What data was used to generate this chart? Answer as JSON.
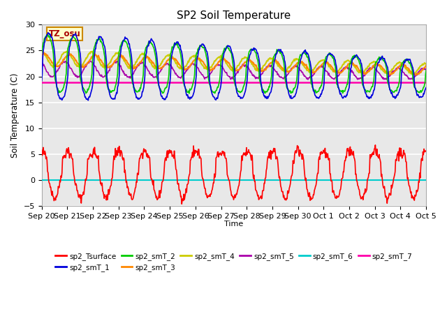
{
  "title": "SP2 Soil Temperature",
  "ylabel": "Soil Temperature (C)",
  "xlabel": "Time",
  "tz_label": "TZ_osu",
  "x_tick_labels": [
    "Sep 20",
    "Sep 21",
    "Sep 22",
    "Sep 23",
    "Sep 24",
    "Sep 25",
    "Sep 26",
    "Sep 27",
    "Sep 28",
    "Sep 29",
    "Sep 30",
    "Oct 1",
    "Oct 2",
    "Oct 3",
    "Oct 4",
    "Oct 5"
  ],
  "ylim": [
    -5,
    30
  ],
  "yticks": [
    -5,
    0,
    5,
    10,
    15,
    20,
    25,
    30
  ],
  "colors": {
    "sp2_Tsurface": "#FF0000",
    "sp2_smT_1": "#0000DD",
    "sp2_smT_2": "#00CC00",
    "sp2_smT_3": "#FF8800",
    "sp2_smT_4": "#CCCC00",
    "sp2_smT_5": "#AA00AA",
    "sp2_smT_6": "#00CCCC",
    "sp2_smT_7": "#FF00AA"
  },
  "background_color": "#FFFFFF",
  "plot_bg_color": "#E8E8E8",
  "grid_color": "#FFFFFF",
  "figsize": [
    6.4,
    4.8
  ],
  "dpi": 100
}
